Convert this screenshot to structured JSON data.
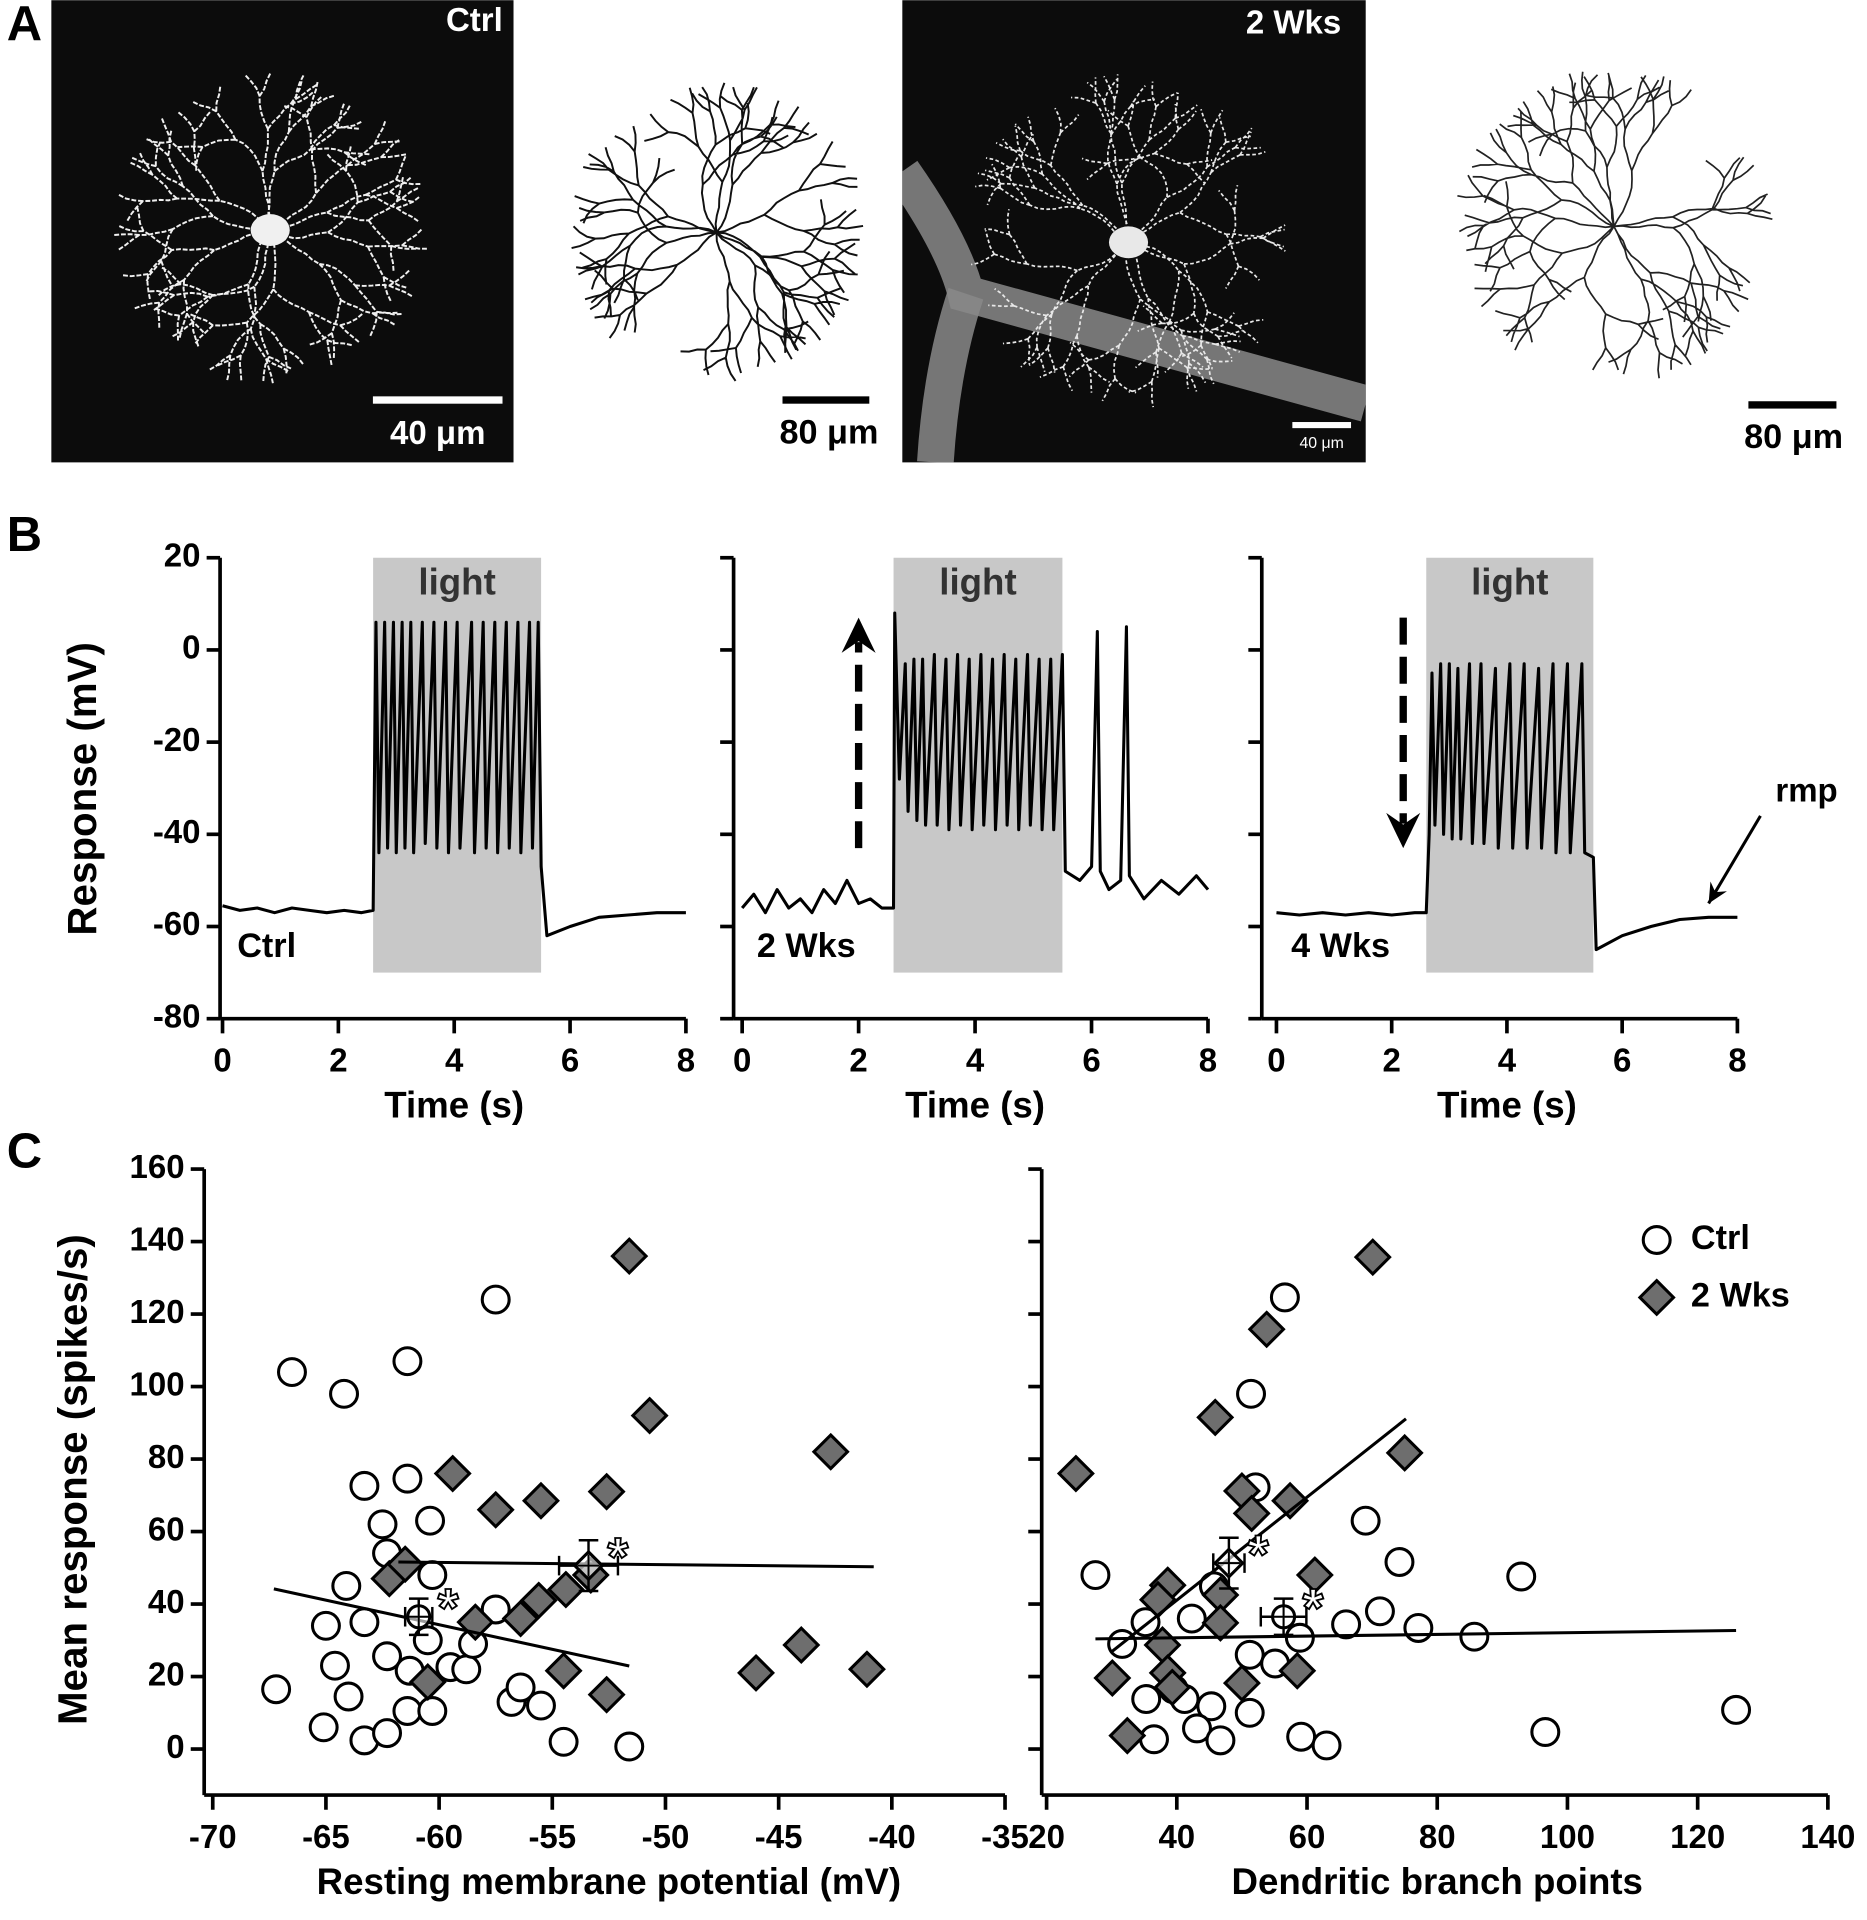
{
  "figure_labels": [
    "A",
    "B",
    "C"
  ],
  "panel_a": {
    "images": [
      {
        "label": "Ctrl",
        "scale_bar": "40 μm"
      },
      {
        "label": "2 Wks",
        "scale_bar": "40 μm"
      }
    ],
    "tracings": [
      {
        "scale_bar": "80 μm"
      },
      {
        "scale_bar": "80 μm"
      }
    ]
  },
  "chart_data": [
    {
      "type": "line",
      "label": "Ctrl",
      "ylabel": "Response (mV)",
      "xlabel": "Time (s)",
      "xlim": [
        0,
        8
      ],
      "xticks": [
        0,
        2,
        4,
        6,
        8
      ],
      "ylim": [
        -80,
        20
      ],
      "yticks": [
        -80,
        -60,
        -40,
        -20,
        0,
        20
      ],
      "color": "#000000",
      "shade": {
        "x": [
          2.6,
          5.5
        ],
        "y": [
          -70,
          20
        ],
        "label": "light",
        "color": "#c8c8c8"
      },
      "x": [
        0,
        0.3,
        0.6,
        0.9,
        1.2,
        1.5,
        1.8,
        2.1,
        2.4,
        2.6,
        2.65,
        2.7,
        2.8,
        2.85,
        2.95,
        3.0,
        3.1,
        3.15,
        3.25,
        3.3,
        3.45,
        3.5,
        3.65,
        3.7,
        3.85,
        3.9,
        4.05,
        4.1,
        4.3,
        4.35,
        4.5,
        4.55,
        4.7,
        4.75,
        4.9,
        4.95,
        5.1,
        5.15,
        5.3,
        5.35,
        5.45,
        5.5,
        5.6,
        6,
        6.5,
        7,
        7.5,
        8
      ],
      "values": [
        -55.5,
        -56.5,
        -56,
        -57,
        -56,
        -56.5,
        -57,
        -56.5,
        -57,
        -56.5,
        6,
        -44,
        6,
        -43,
        6,
        -44,
        6,
        -43,
        6,
        -44,
        6,
        -42,
        6,
        -43,
        6,
        -44,
        6,
        -43,
        6,
        -44,
        6,
        -43,
        6,
        -44,
        6,
        -43,
        6,
        -44,
        6,
        -43,
        6,
        -47,
        -62,
        -60,
        -58,
        -57.5,
        -57,
        -57
      ]
    },
    {
      "type": "line",
      "label": "2 Wks",
      "xlabel": "Time (s)",
      "xlim": [
        0,
        8
      ],
      "xticks": [
        0,
        2,
        4,
        6,
        8
      ],
      "ylim": [
        -80,
        20
      ],
      "yticks": [
        -80,
        -60,
        -40,
        -20,
        0,
        20
      ],
      "ytick_labels": false,
      "color": "#000000",
      "shade": {
        "x": [
          2.6,
          5.5
        ],
        "y": [
          -70,
          20
        ],
        "label": "light",
        "color": "#c8c8c8"
      },
      "arrow": {
        "x": 2,
        "from": -43,
        "to": 7
      },
      "x": [
        0,
        0.2,
        0.4,
        0.6,
        0.8,
        1.0,
        1.2,
        1.4,
        1.6,
        1.8,
        2.0,
        2.2,
        2.4,
        2.6,
        2.62,
        2.7,
        2.8,
        2.85,
        2.95,
        3.0,
        3.1,
        3.15,
        3.3,
        3.35,
        3.5,
        3.55,
        3.7,
        3.75,
        3.9,
        3.95,
        4.1,
        4.15,
        4.3,
        4.35,
        4.5,
        4.55,
        4.7,
        4.75,
        4.9,
        4.95,
        5.1,
        5.15,
        5.3,
        5.35,
        5.5,
        5.55,
        5.8,
        6.0,
        6.1,
        6.15,
        6.3,
        6.5,
        6.6,
        6.65,
        6.9,
        7.2,
        7.5,
        7.8,
        8
      ],
      "values": [
        -56,
        -53,
        -57,
        -52,
        -56,
        -54,
        -57,
        -52,
        -55,
        -50,
        -55,
        -54,
        -56,
        -56,
        8,
        -28,
        -3,
        -35,
        -2,
        -37,
        -2,
        -38,
        -1,
        -38,
        -2,
        -39,
        -1,
        -38,
        -2,
        -39,
        -1,
        -38,
        -2,
        -39,
        -1,
        -38,
        -2,
        -39,
        -1,
        -38,
        -2,
        -39,
        -2,
        -39,
        -1,
        -48,
        -50,
        -47,
        4,
        -48,
        -52,
        -50,
        5,
        -49,
        -54,
        -50,
        -53,
        -49,
        -52
      ]
    },
    {
      "type": "line",
      "label": "4 Wks",
      "xlabel": "Time (s)",
      "xlim": [
        0,
        8
      ],
      "xticks": [
        0,
        2,
        4,
        6,
        8
      ],
      "ylim": [
        -80,
        20
      ],
      "yticks": [
        -80,
        -60,
        -40,
        -20,
        0,
        20
      ],
      "ytick_labels": false,
      "color": "#000000",
      "shade": {
        "x": [
          2.6,
          5.5
        ],
        "y": [
          -70,
          20
        ],
        "label": "light",
        "color": "#c8c8c8"
      },
      "arrow": {
        "x": 2.2,
        "from": 7,
        "to": -43
      },
      "annotation": {
        "text": "rmp",
        "x": 9.2,
        "y": -31,
        "arrow_from": [
          8.4,
          -36
        ],
        "arrow_to": [
          7.5,
          -55
        ]
      },
      "x": [
        0,
        0.4,
        0.8,
        1.2,
        1.6,
        2.0,
        2.4,
        2.6,
        2.65,
        2.7,
        2.75,
        2.85,
        2.9,
        3.0,
        3.05,
        3.15,
        3.2,
        3.35,
        3.4,
        3.55,
        3.6,
        3.8,
        3.85,
        4.05,
        4.1,
        4.3,
        4.35,
        4.55,
        4.6,
        4.8,
        4.85,
        5.05,
        5.1,
        5.3,
        5.35,
        5.5,
        5.55,
        6.0,
        6.5,
        7.0,
        7.5,
        8
      ],
      "values": [
        -57,
        -57.5,
        -57,
        -57.5,
        -57,
        -57.5,
        -57,
        -57,
        -40,
        -5,
        -38,
        -3,
        -40,
        -3,
        -41,
        -4,
        -41,
        -3,
        -42,
        -3,
        -42,
        -4,
        -43,
        -3,
        -43,
        -3,
        -43,
        -4,
        -43,
        -3,
        -44,
        -3,
        -44,
        -3,
        -44,
        -45,
        -65,
        -62,
        -60,
        -58.5,
        -58,
        -58
      ]
    },
    {
      "type": "scatter",
      "ylabel": "Mean response (spikes/s)",
      "xlabel": "Resting membrane potential (mV)",
      "xlim": [
        -70,
        -35
      ],
      "xticks": [
        -70,
        -65,
        -60,
        -55,
        -50,
        -45,
        -40,
        -35
      ],
      "ylim": [
        -10,
        160
      ],
      "yticks": [
        0,
        20,
        40,
        60,
        80,
        100,
        120,
        140,
        160
      ],
      "series": [
        {
          "name": "Ctrl",
          "marker": "circle",
          "color": "#ffffff",
          "x": [
            -67.2,
            -66.5,
            -64.2,
            -65.1,
            -65.0,
            -64.6,
            -64.1,
            -64.0,
            -63.3,
            -63.3,
            -63.3,
            -62.5,
            -62.3,
            -62.3,
            -62.3,
            -61.4,
            -61.4,
            -61.3,
            -61.4,
            -60.4,
            -60.3,
            -60.5,
            -60.3,
            -59.5,
            -58.8,
            -58.5,
            -57.5,
            -57.5,
            -56.8,
            -56.4,
            -55.5,
            -54.5,
            -51.6
          ],
          "values": [
            16.5,
            104,
            98,
            6,
            34,
            23,
            45,
            14.5,
            72.6,
            35,
            2.4,
            62,
            54,
            25.6,
            4.4,
            107,
            74.6,
            21.6,
            10.5,
            63,
            48,
            30,
            10.5,
            22.6,
            22,
            29,
            124,
            38.5,
            13,
            17,
            12,
            2,
            0.7
          ],
          "fit": {
            "x": [
              -67.3,
              -51.6
            ],
            "y": [
              44.2,
              22.9
            ]
          },
          "mean": {
            "x": -60.9,
            "y": 36.5,
            "xerr": 0.6,
            "yerr": 5,
            "label": "*"
          }
        },
        {
          "name": "2 Wks",
          "marker": "diamond",
          "color": "#6e6e6e",
          "x": [
            -51.6,
            -50.7,
            -42.7,
            -59.4,
            -57.5,
            -55.5,
            -52.6,
            -62.2,
            -61.5,
            -58.4,
            -56.4,
            -55.6,
            -54.4,
            -53.3,
            -54.5,
            -60.5,
            -52.6,
            -46.0,
            -44.0,
            -41.1
          ],
          "values": [
            136,
            92,
            82,
            76,
            66,
            68.5,
            71,
            47,
            51,
            35,
            36,
            41,
            44,
            48,
            21.6,
            18.5,
            15,
            21,
            28.7,
            22
          ],
          "fit": {
            "x": [
              -61.8,
              -40.8
            ],
            "y": [
              51.6,
              50.3
            ]
          },
          "mean": {
            "x": -53.4,
            "y": 50.6,
            "xerr": 1.3,
            "yerr": 7,
            "label": "*"
          }
        }
      ]
    },
    {
      "type": "scatter",
      "xlabel": "Dendritic branch points",
      "xlim": [
        20,
        140
      ],
      "xticks": [
        20,
        40,
        60,
        80,
        100,
        120,
        140
      ],
      "ylim": [
        -10,
        160
      ],
      "yticks": [
        0,
        20,
        40,
        60,
        80,
        100,
        120,
        140,
        160
      ],
      "ytick_labels": false,
      "legend": "top-right",
      "series": [
        {
          "name": "Ctrl",
          "marker": "circle",
          "color": "#ffffff",
          "x": [
            56.6,
            51.4,
            52.1,
            27.5,
            69,
            74.2,
            92.9,
            31.6,
            35.2,
            42.3,
            71.2,
            77.1,
            85.7,
            66,
            58.9,
            51.2,
            55.1,
            39.5,
            35.3,
            41.2,
            45.3,
            51.2,
            43.1,
            36.5,
            46.7,
            59.1,
            63.0,
            96.6,
            125.9,
            45.7
          ],
          "values": [
            124.6,
            98,
            72.2,
            48,
            63,
            51.6,
            47.6,
            29,
            35,
            36,
            38,
            33.4,
            31,
            34.4,
            30.7,
            26,
            23.6,
            16.5,
            13.8,
            13.8,
            11.8,
            10,
            5.7,
            2.7,
            2.4,
            3.4,
            1,
            4.7,
            10.8,
            44.9
          ],
          "fit": {
            "x": [
              27.5,
              125.9
            ],
            "y": [
              30.4,
              32.7
            ]
          },
          "mean": {
            "x": 56.4,
            "y": 36.5,
            "xerr": 3.5,
            "yerr": 5,
            "label": "*"
          }
        },
        {
          "name": "2 Wks",
          "marker": "diamond",
          "color": "#6e6e6e",
          "x": [
            70.1,
            53.8,
            45.9,
            24.5,
            75,
            50,
            57.4,
            51.5,
            61.2,
            38.6,
            37.1,
            46.7,
            46.7,
            37.8,
            38.6,
            39.3,
            30.1,
            50,
            58.5,
            32.4
          ],
          "values": [
            135.7,
            115.8,
            91.5,
            76,
            81.7,
            71.2,
            68.5,
            65,
            48,
            45.2,
            41.2,
            42.5,
            34.8,
            28.7,
            21,
            17,
            19.6,
            18.2,
            21.6,
            3.7
          ],
          "fit": {
            "x": [
              30.1,
              75.2
            ],
            "y": [
              27,
              91.1
            ]
          },
          "mean": {
            "x": 48,
            "y": 51.3,
            "xerr": 2.4,
            "yerr": 7,
            "label": "*"
          }
        }
      ]
    }
  ]
}
